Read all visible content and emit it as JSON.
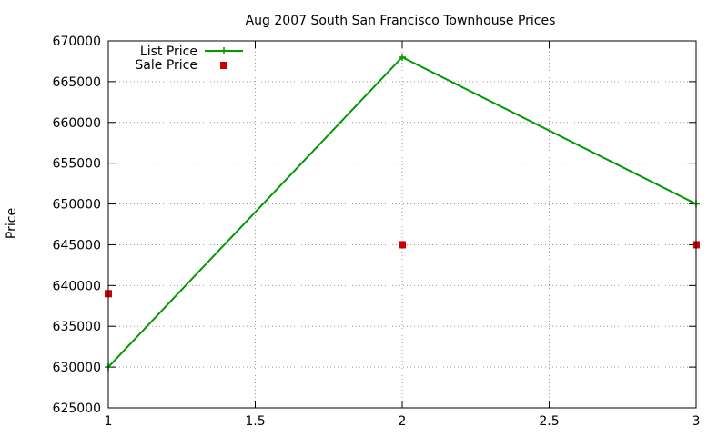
{
  "chart_data": {
    "type": "line",
    "title": "Aug 2007 South San Francisco Townhouse Prices",
    "xlabel": "",
    "ylabel": "Price",
    "xlim": [
      1,
      3
    ],
    "ylim": [
      625000,
      670000
    ],
    "x_ticks": [
      1,
      1.5,
      2,
      2.5,
      3
    ],
    "x_tick_labels": [
      "1",
      "1.5",
      "2",
      "2.5",
      "3"
    ],
    "y_ticks": [
      625000,
      630000,
      635000,
      640000,
      645000,
      650000,
      655000,
      660000,
      665000,
      670000
    ],
    "y_tick_labels": [
      "625000",
      "630000",
      "635000",
      "640000",
      "645000",
      "650000",
      "655000",
      "660000",
      "665000",
      "670000"
    ],
    "grid": true,
    "legend_position": "top-left",
    "series": [
      {
        "name": "List Price",
        "style": "line-with-plus-markers",
        "color": "#009900",
        "points": [
          [
            1,
            630000
          ],
          [
            2,
            668000
          ],
          [
            3,
            650000
          ]
        ]
      },
      {
        "name": "Sale Price",
        "style": "square-markers",
        "color": "#cc0000",
        "points": [
          [
            1,
            639000
          ],
          [
            2,
            645000
          ],
          [
            3,
            645000
          ]
        ]
      }
    ]
  }
}
